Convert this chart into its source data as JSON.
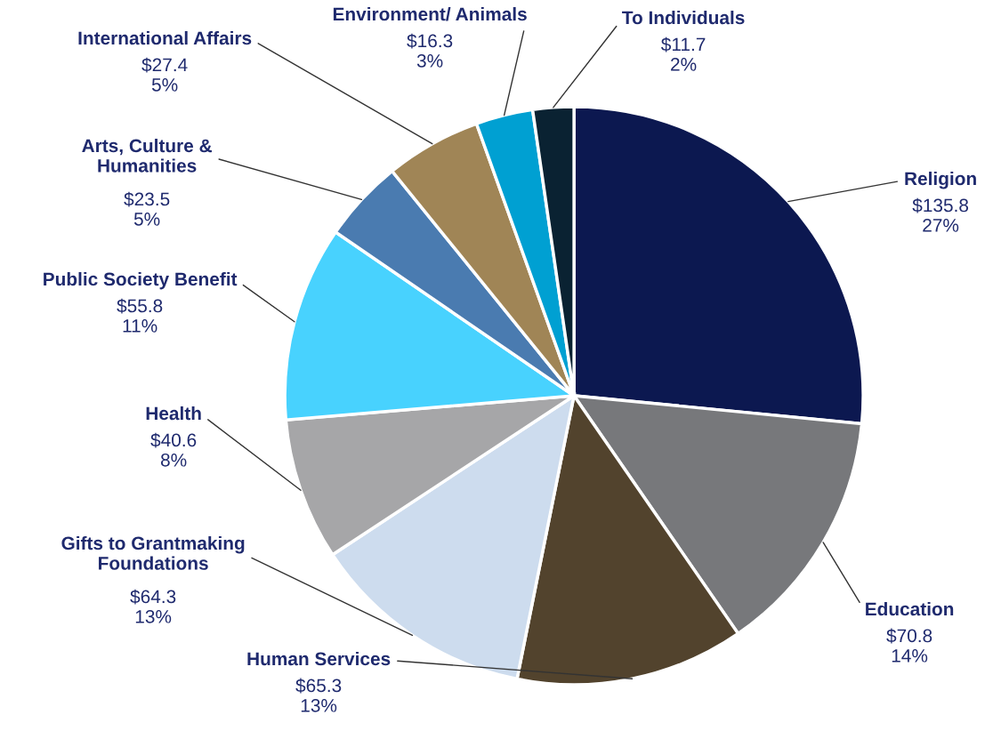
{
  "chart_data": {
    "type": "pie",
    "categories": [
      "Religion",
      "Education",
      "Human Services",
      "Gifts to Grantmaking\nFoundations",
      "Health",
      "Public Society Benefit",
      "Arts, Culture &\nHumanities",
      "International Affairs",
      "Environment/ Animals",
      "To Individuals"
    ],
    "values": [
      135.8,
      70.8,
      65.3,
      64.3,
      40.6,
      55.8,
      23.5,
      27.4,
      16.3,
      11.7
    ],
    "colors": [
      "#0c1850",
      "#77787b",
      "#52432d",
      "#cddcee",
      "#a6a6a8",
      "#48d2fe",
      "#4a7bb0",
      "#a08556",
      "#00a0d2",
      "#0a2232"
    ],
    "value_labels": [
      "$135.8\n27%",
      "$70.8\n14%",
      "$65.3\n13%",
      "$64.3\n13%",
      "$40.6\n8%",
      "$55.8\n11%",
      "$23.5\n5%",
      "$27.4\n5%",
      "$16.3\n3%",
      "$11.7\n2%"
    ]
  }
}
